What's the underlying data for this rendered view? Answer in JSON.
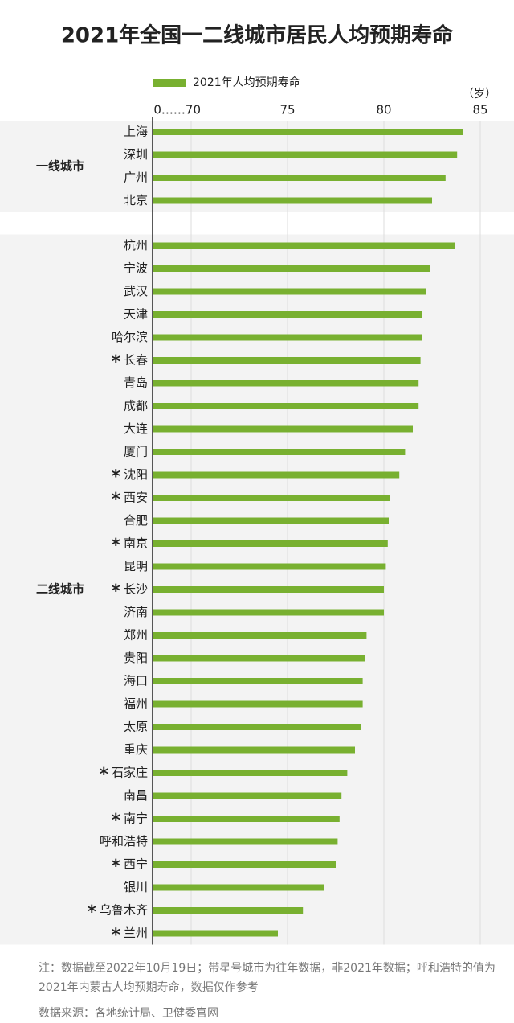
{
  "chart_data": {
    "type": "hbar",
    "title": "2021年全国一二线城市居民人均预期寿命",
    "unit_label": "（岁）",
    "categories": [
      "上海",
      "深圳",
      "广州",
      "北京",
      "杭州",
      "宁波",
      "武汉",
      "天津",
      "哈尔滨",
      "长春",
      "青岛",
      "成都",
      "大连",
      "厦门",
      "沈阳",
      "西安",
      "合肥",
      "南京",
      "昆明",
      "长沙",
      "济南",
      "郑州",
      "贵阳",
      "海口",
      "福州",
      "太原",
      "重庆",
      "石家庄",
      "南昌",
      "南宁",
      "呼和浩特",
      "西宁",
      "银川",
      "乌鲁木齐",
      "兰州"
    ],
    "marked": [
      false,
      false,
      false,
      false,
      false,
      false,
      false,
      false,
      false,
      true,
      false,
      false,
      false,
      false,
      true,
      true,
      false,
      true,
      false,
      true,
      false,
      false,
      false,
      false,
      false,
      false,
      false,
      true,
      false,
      true,
      false,
      true,
      false,
      true,
      true
    ],
    "marker": "*",
    "groups": [
      {
        "label": "一线城市",
        "count": 4
      },
      {
        "label": "二线城市",
        "count": 31
      }
    ],
    "series": [
      {
        "name": "2021年人均预期寿命",
        "color": "#78b030",
        "values": [
          84.1,
          83.8,
          83.2,
          82.5,
          83.7,
          82.4,
          82.2,
          82.0,
          82.0,
          81.9,
          81.8,
          81.8,
          81.5,
          81.1,
          80.8,
          80.3,
          80.25,
          80.2,
          80.1,
          80.0,
          80.0,
          79.1,
          79.0,
          78.9,
          78.9,
          78.8,
          78.5,
          78.1,
          77.8,
          77.7,
          77.6,
          77.5,
          76.9,
          75.8,
          74.5
        ]
      }
    ],
    "xlim": [
      68,
      85
    ],
    "xticks": [
      {
        "value": 70,
        "label": "0……70"
      },
      75,
      80,
      85
    ],
    "grid": true,
    "note": "注：数据截至2022年10月19日；带星号城市为往年数据，非2021年数据；呼和浩特的值为2021年内蒙古人均预期寿命，数据仅作参考",
    "source": "数据来源：各地统计局、卫健委官网"
  }
}
